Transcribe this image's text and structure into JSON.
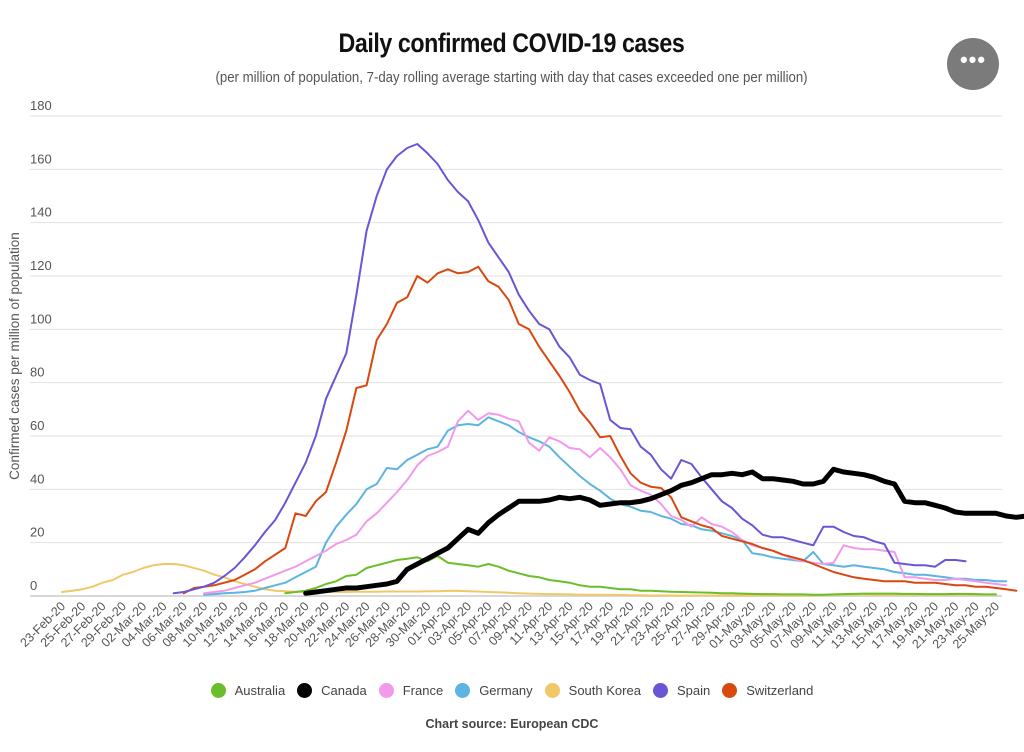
{
  "header": {
    "title": "Daily confirmed COVID-19 cases",
    "subtitle": "(per million of population, 7-day rolling average starting with day that cases exceeded one per million)",
    "menu_icon": "more-horizontal-icon",
    "menu_glyph": "•••"
  },
  "footer": {
    "source": "Chart source: European CDC"
  },
  "chart_data": {
    "type": "line",
    "title": "Daily confirmed COVID-19 cases",
    "subtitle": "(per million of population, 7-day rolling average starting with day that cases exceeded one per million)",
    "xlabel": "",
    "ylabel": "Confirmed cases per million of population",
    "ylim": [
      0,
      180
    ],
    "yticks": [
      0,
      20,
      40,
      60,
      80,
      100,
      120,
      140,
      160,
      180
    ],
    "grid": true,
    "legend_position": "bottom",
    "x_start": "23-Feb-20",
    "x_end": "25-May-20",
    "xtick_labels": [
      "23-Feb-20",
      "25-Feb-20",
      "27-Feb-20",
      "29-Feb-20",
      "02-Mar-20",
      "04-Mar-20",
      "06-Mar-20",
      "08-Mar-20",
      "10-Mar-20",
      "12-Mar-20",
      "14-Mar-20",
      "16-Mar-20",
      "18-Mar-20",
      "20-Mar-20",
      "22-Mar-20",
      "24-Mar-20",
      "26-Mar-20",
      "28-Mar-20",
      "30-Mar-20",
      "01-Apr-20",
      "03-Apr-20",
      "05-Apr-20",
      "07-Apr-20",
      "09-Apr-20",
      "11-Apr-20",
      "13-Apr-20",
      "15-Apr-20",
      "17-Apr-20",
      "19-Apr-20",
      "21-Apr-20",
      "23-Apr-20",
      "25-Apr-20",
      "27-Apr-20",
      "29-Apr-20",
      "01-May-20",
      "03-May-20",
      "05-May-20",
      "07-May-20",
      "09-May-20",
      "11-May-20",
      "13-May-20",
      "15-May-20",
      "17-May-20",
      "19-May-20",
      "21-May-20",
      "23-May-20",
      "25-May-20"
    ],
    "series_note": "Each series lists daily values starting at start_day (day index, 0 = 23-Feb-20).",
    "series": [
      {
        "name": "Australia",
        "color": "#6cbd2a",
        "start_day": 22,
        "values": [
          1.0,
          1.5,
          2.0,
          3.0,
          4.5,
          5.5,
          7.5,
          8.0,
          10.5,
          11.5,
          12.5,
          13.5,
          14.0,
          14.5,
          13.0,
          15.0,
          12.5,
          12.0,
          11.5,
          11.0,
          12.0,
          11.0,
          9.5,
          8.5,
          7.5,
          7.0,
          6.0,
          5.5,
          5.0,
          4.0,
          3.5,
          3.5,
          3.0,
          2.5,
          2.5,
          2.0,
          2.0,
          1.8,
          1.6,
          1.5,
          1.4,
          1.3,
          1.2,
          1.0,
          1.0,
          0.9,
          0.8,
          0.7,
          0.7,
          0.6,
          0.6,
          0.6,
          0.5,
          0.5,
          0.6,
          0.7,
          0.8,
          0.9,
          0.9,
          0.9,
          0.9,
          0.8,
          0.8,
          0.7,
          0.7,
          0.7,
          0.8,
          0.8,
          0.7,
          0.6,
          0.6
        ]
      },
      {
        "name": "Canada",
        "color": "#000000",
        "start_day": 24,
        "values": [
          1.0,
          1.5,
          2.0,
          2.5,
          3.0,
          3.0,
          3.5,
          4.0,
          4.5,
          5.5,
          10.0,
          12.0,
          14.0,
          16.0,
          18.0,
          21.5,
          25.0,
          23.5,
          27.5,
          30.5,
          33.0,
          35.5,
          35.5,
          35.5,
          36.0,
          37.0,
          36.5,
          37.0,
          36.0,
          34.0,
          34.5,
          35.0,
          35.0,
          35.5,
          36.5,
          38.0,
          39.5,
          41.5,
          42.5,
          44.0,
          45.5,
          45.5,
          46.0,
          45.5,
          46.5,
          44.0,
          44.0,
          43.5,
          43.0,
          42.0,
          42.0,
          43.0,
          47.5,
          46.5,
          46.0,
          45.5,
          44.5,
          43.0,
          42.0,
          35.5,
          35.0,
          35.0,
          34.0,
          33.0,
          31.5,
          31.0,
          31.0,
          31.0,
          31.0,
          30.0,
          29.5,
          30.0,
          29.5,
          29.5
        ]
      },
      {
        "name": "France",
        "color": "#f19aec",
        "start_day": 14,
        "values": [
          1.0,
          1.5,
          2.0,
          3.0,
          4.0,
          5.0,
          6.5,
          8.0,
          9.5,
          11.0,
          13.0,
          15.0,
          17.0,
          19.5,
          21.0,
          23.0,
          28.0,
          31.0,
          35.0,
          39.0,
          43.5,
          49.0,
          52.5,
          54.0,
          56.0,
          65.5,
          69.5,
          66.0,
          68.5,
          68.0,
          66.5,
          65.5,
          57.5,
          54.5,
          59.5,
          58.0,
          55.5,
          55.0,
          52.0,
          55.5,
          52.0,
          47.5,
          41.5,
          39.5,
          38.0,
          34.5,
          30.0,
          28.5,
          26.0,
          29.5,
          27.0,
          26.0,
          24.0,
          21.0,
          19.0,
          18.0,
          17.0,
          15.5,
          14.0,
          13.0,
          12.5,
          12.0,
          12.5,
          19.0,
          18.0,
          17.5,
          17.5,
          17.0,
          16.5,
          7.0,
          7.0,
          6.5,
          6.0,
          6.0,
          6.5,
          6.0,
          5.5,
          5.0,
          4.5,
          4.0
        ]
      },
      {
        "name": "Germany",
        "color": "#5cb5e0",
        "start_day": 14,
        "values": [
          0.5,
          0.7,
          1.0,
          1.2,
          1.5,
          2.0,
          3.0,
          4.0,
          5.0,
          7.0,
          9.0,
          11.0,
          20.0,
          26.0,
          30.5,
          34.5,
          40.0,
          42.0,
          48.0,
          47.5,
          51.0,
          53.0,
          55.0,
          56.0,
          62.0,
          64.0,
          64.5,
          64.0,
          67.0,
          65.5,
          64.0,
          61.5,
          59.5,
          58.0,
          56.0,
          52.0,
          48.5,
          45.0,
          42.0,
          39.5,
          36.5,
          34.5,
          33.5,
          32.0,
          31.5,
          30.0,
          29.0,
          27.0,
          26.5,
          25.0,
          24.5,
          23.5,
          22.5,
          21.0,
          16.0,
          15.5,
          14.5,
          14.0,
          13.5,
          13.0,
          16.5,
          12.0,
          11.5,
          11.0,
          11.5,
          11.0,
          10.5,
          10.0,
          9.0,
          8.5,
          8.0,
          8.0,
          7.5,
          7.0,
          6.5,
          6.5,
          6.0,
          6.0,
          5.5,
          5.5
        ]
      },
      {
        "name": "South Korea",
        "color": "#f0c868",
        "start_day": 0,
        "values": [
          1.5,
          2.0,
          2.5,
          3.5,
          5.0,
          6.0,
          8.0,
          9.0,
          10.5,
          11.5,
          12.0,
          12.0,
          11.5,
          10.5,
          9.5,
          8.0,
          7.0,
          5.5,
          4.5,
          3.5,
          2.5,
          2.0,
          1.8,
          1.6,
          1.5,
          1.5,
          1.5,
          1.5,
          1.5,
          1.6,
          1.6,
          1.6,
          1.7,
          1.7,
          1.7,
          1.7,
          1.8,
          1.8,
          1.9,
          2.0,
          1.8,
          1.7,
          1.5,
          1.4,
          1.2,
          1.0,
          0.9,
          0.8,
          0.7,
          0.7,
          0.6,
          0.5,
          0.5,
          0.5,
          0.4,
          0.4,
          0.3,
          0.3,
          0.2,
          0.2,
          0.2,
          0.2,
          0.2,
          0.2,
          0.2,
          0.2,
          0.2,
          0.2,
          0.2,
          0.2,
          0.2,
          0.2,
          0.2,
          0.2,
          0.2,
          0.3,
          0.4,
          0.5,
          0.5,
          0.6,
          0.5,
          0.5,
          0.5,
          0.5,
          0.5,
          0.5,
          0.5,
          0.5,
          0.5,
          0.5,
          0.5,
          0.5,
          0.5
        ]
      },
      {
        "name": "Spain",
        "color": "#6a55d6",
        "start_day": 11,
        "values": [
          1.0,
          1.5,
          2.5,
          3.5,
          5.0,
          7.5,
          10.5,
          14.5,
          19.0,
          24.0,
          28.5,
          35.0,
          42.5,
          50.0,
          60.0,
          74.0,
          82.5,
          91.0,
          113.0,
          137.0,
          150.0,
          160.0,
          165.0,
          168.0,
          169.5,
          166.0,
          162.0,
          156.0,
          151.5,
          148.0,
          141.0,
          132.5,
          127.0,
          121.5,
          113.0,
          107.0,
          102.0,
          100.0,
          93.5,
          89.5,
          83.0,
          81.0,
          79.5,
          66.0,
          63.0,
          62.5,
          56.0,
          53.0,
          47.5,
          44.0,
          51.0,
          49.5,
          44.5,
          40.0,
          35.5,
          33.0,
          29.0,
          26.5,
          23.0,
          22.0,
          22.0,
          21.0,
          20.0,
          19.0,
          26.0,
          26.0,
          24.0,
          22.5,
          22.0,
          20.5,
          19.5,
          12.5,
          12.0,
          11.5,
          11.5,
          11.0,
          13.5,
          13.5,
          13.0
        ]
      },
      {
        "name": "Switzerland",
        "color": "#d9480f",
        "start_day": 12,
        "values": [
          1.0,
          3.0,
          3.5,
          4.0,
          5.0,
          6.0,
          8.0,
          10.0,
          13.0,
          15.5,
          18.0,
          31.0,
          30.0,
          35.5,
          39.0,
          50.0,
          62.0,
          78.0,
          79.0,
          96.0,
          102.0,
          110.0,
          112.0,
          120.0,
          117.5,
          121.0,
          122.5,
          121.0,
          121.5,
          123.5,
          118.0,
          116.0,
          111.0,
          102.0,
          100.0,
          93.5,
          88.0,
          82.5,
          76.5,
          69.5,
          65.0,
          59.5,
          60.0,
          52.5,
          46.0,
          42.5,
          41.0,
          40.5,
          37.0,
          29.5,
          28.0,
          26.5,
          25.5,
          22.5,
          21.5,
          20.5,
          19.5,
          18.0,
          17.0,
          15.5,
          14.5,
          13.5,
          12.0,
          10.5,
          9.0,
          8.0,
          7.0,
          6.5,
          6.0,
          5.5,
          5.5,
          5.5,
          5.0,
          5.0,
          5.0,
          4.5,
          4.0,
          4.0,
          3.5,
          3.5,
          3.0,
          2.5,
          2.0
        ]
      }
    ]
  }
}
